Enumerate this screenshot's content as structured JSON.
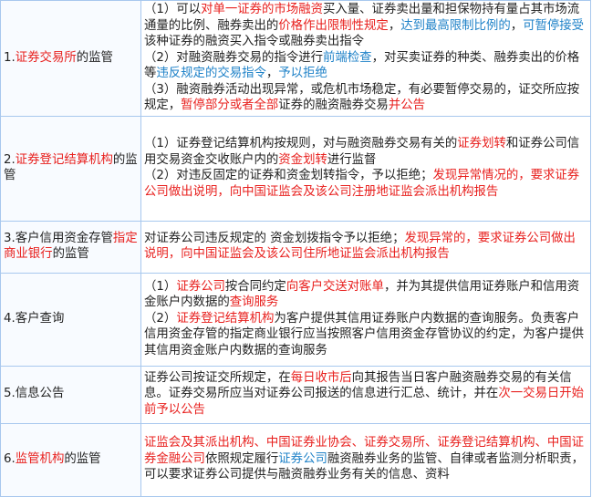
{
  "rows": [
    {
      "label": [
        {
          "t": "1.",
          "c": ""
        },
        {
          "t": "证券交易所",
          "c": "red"
        },
        {
          "t": "的监管",
          "c": ""
        }
      ],
      "paras": [
        [
          {
            "t": "（1）可以",
            "c": ""
          },
          {
            "t": "对单一证券的市场融资",
            "c": "red"
          },
          {
            "t": "买入量、证券卖出量和担保物持有量占其市场流通量的比例、融券卖出的",
            "c": ""
          },
          {
            "t": "价格作出限制性规定",
            "c": "red"
          },
          {
            "t": "，",
            "c": ""
          },
          {
            "t": "达到最高限制比例的",
            "c": "blue"
          },
          {
            "t": "，",
            "c": ""
          },
          {
            "t": "可暂停接受",
            "c": "blue"
          },
          {
            "t": "该种证券的融资买入指令或融券卖出指令",
            "c": ""
          }
        ],
        [
          {
            "t": "（2）对融资融券交易的指令进行",
            "c": ""
          },
          {
            "t": "前端检查",
            "c": "blue"
          },
          {
            "t": "，对买卖证券的种类、融券卖出的价格等",
            "c": ""
          },
          {
            "t": "违反规定的交易指令",
            "c": "blue"
          },
          {
            "t": "，",
            "c": ""
          },
          {
            "t": "予以拒绝",
            "c": "blue"
          }
        ],
        [
          {
            "t": "（3）融资融券活动出现异常，或危机市场稳定，有必要暂停交易的，证交所应按规定，",
            "c": ""
          },
          {
            "t": "暂停部分或者全部",
            "c": "red"
          },
          {
            "t": "证券的融资融券交易",
            "c": ""
          },
          {
            "t": "并公告",
            "c": "red"
          }
        ]
      ]
    },
    {
      "label": [
        {
          "t": "2.",
          "c": ""
        },
        {
          "t": "证券登记结算机构",
          "c": "red"
        },
        {
          "t": "的监管",
          "c": ""
        }
      ],
      "paras": [
        [
          {
            "t": "（1）证券登记结算机构按规则，对与融资融券交易有关的",
            "c": ""
          },
          {
            "t": "证券划转",
            "c": "red"
          },
          {
            "t": "和证券公司信用交易资金交收账户内的",
            "c": ""
          },
          {
            "t": "资金划转",
            "c": "red"
          },
          {
            "t": "进行监督",
            "c": ""
          }
        ],
        [
          {
            "t": "（2）对违反固定的证券和资金划转指令，予以拒绝；",
            "c": ""
          },
          {
            "t": "发现异常情况的，要求证券公司做出说明，向中国证监会及该公司注册地证监会派出机构报告",
            "c": "red"
          }
        ]
      ]
    },
    {
      "label": [
        {
          "t": "3.客户信用资金存管",
          "c": ""
        },
        {
          "t": "指定商业银行",
          "c": "red"
        },
        {
          "t": "的监管",
          "c": ""
        }
      ],
      "paras": [
        [
          {
            "t": "对证券公司违反规定的 资金划拨指令予以拒绝；",
            "c": ""
          },
          {
            "t": "发现异常的，要求证券公司做出说明，向中国证监会及该公司住所地证监会派出机构报告",
            "c": "red"
          }
        ]
      ]
    },
    {
      "label": [
        {
          "t": "4.客户查询",
          "c": ""
        }
      ],
      "paras": [
        [
          {
            "t": "（1）",
            "c": ""
          },
          {
            "t": "证券公司",
            "c": "red"
          },
          {
            "t": "按合同约定",
            "c": ""
          },
          {
            "t": "向客户交送对账单",
            "c": "red"
          },
          {
            "t": "，并为其提供信用证券账户和信用资金账户内数据的",
            "c": ""
          },
          {
            "t": "查询服务",
            "c": "red"
          }
        ],
        [
          {
            "t": "（2）",
            "c": ""
          },
          {
            "t": "证券登记结算机构",
            "c": "red"
          },
          {
            "t": "为客户提供其信用证券账户内数据的查询服务。负责客户信用资金存管的指定商业银行应当按照客户信用资金存管协议的约定，为客户提供其信用资金账户内数据的查询服务",
            "c": ""
          }
        ]
      ]
    },
    {
      "label": [
        {
          "t": "5.信息公告",
          "c": ""
        }
      ],
      "paras": [
        [
          {
            "t": "证券公司按证交所规定，在",
            "c": ""
          },
          {
            "t": "每日收市后",
            "c": "red"
          },
          {
            "t": "向其报告当日客户融资融券交易的有关信息。证券交易所应当对证券公司报送的信息进行汇总、统计，并在",
            "c": ""
          },
          {
            "t": "次一交易日开始前予以公告",
            "c": "red"
          }
        ]
      ]
    },
    {
      "label": [
        {
          "t": "6.",
          "c": ""
        },
        {
          "t": "监管机构",
          "c": "red"
        },
        {
          "t": "的监管",
          "c": ""
        }
      ],
      "paras": [
        [
          {
            "t": "证监会及其派出机构、中国证券业协会、证券交易所、证券登记结算机构、中国证券金融公司",
            "c": "red"
          },
          {
            "t": "依照规定履行",
            "c": ""
          },
          {
            "t": "证券公司",
            "c": "blue"
          },
          {
            "t": "融资融券业务的监管、自律或者监测分析职责，可以要求证券公司提供与融资融券业务有关的信息、资料",
            "c": ""
          }
        ]
      ]
    }
  ]
}
